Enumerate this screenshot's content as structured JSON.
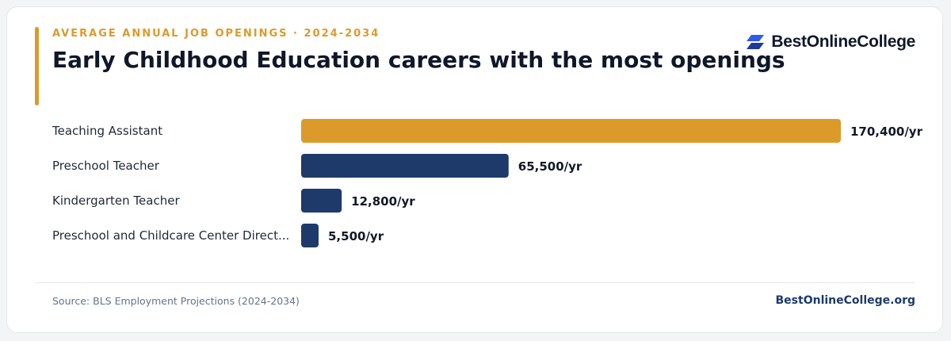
{
  "header": {
    "kicker": "AVERAGE ANNUAL JOB OPENINGS · 2024-2034",
    "title": "Early Childhood Education careers with the most openings",
    "logo_text": "BestOnlineCollege",
    "logo_icon": "bestonlinecollege-logo-icon"
  },
  "colors": {
    "accent": "#dc9a2a",
    "bar_primary": "#dc9a2a",
    "bar_secondary": "#1e3a6b",
    "logo_blue": "#2f5bea"
  },
  "chart_data": {
    "type": "bar",
    "orientation": "horizontal",
    "categories": [
      "Teaching Assistant",
      "Preschool Teacher",
      "Kindergarten Teacher",
      "Preschool and Childcare Center Direct..."
    ],
    "values": [
      170400,
      65500,
      12800,
      5500
    ],
    "value_labels": [
      "170,400/yr",
      "65,500/yr",
      "12,800/yr",
      "5,500/yr"
    ],
    "xlim": [
      0,
      170400
    ],
    "grid": false
  },
  "footer": {
    "source": "Source: BLS Employment Projections (2024-2034)",
    "site": "BestOnlineCollege.org"
  }
}
